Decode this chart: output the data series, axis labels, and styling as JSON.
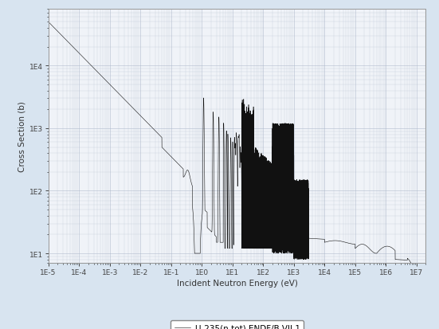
{
  "title": "",
  "xlabel": "Incident Neutron Energy (eV)",
  "ylabel": "Cross Section (b)",
  "legend_label": "U-235(n,tot) ENDF/B-VII.1",
  "xmin": 1e-05,
  "xmax": 20000000.0,
  "ymin": 7,
  "ymax": 80000.0,
  "background_color": "#d8e4f0",
  "plot_bg_color": "#f0f3f8",
  "line_color": "#111111",
  "grid_color": "#aab4c8",
  "tick_label_color": "#444444",
  "axis_label_color": "#333333",
  "legend_box_color": "#ffffff"
}
